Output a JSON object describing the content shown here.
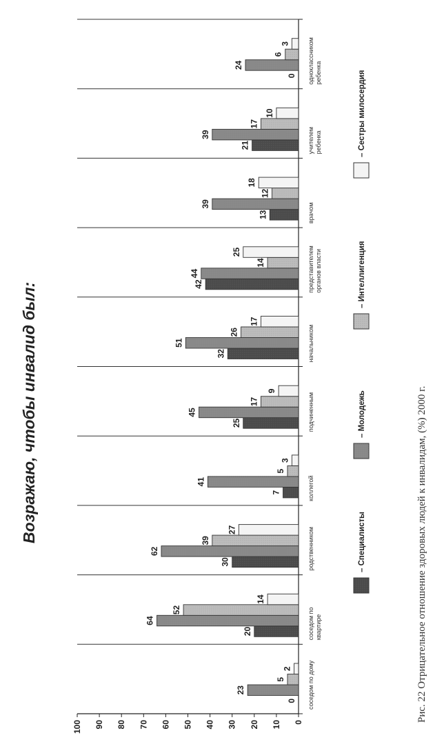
{
  "title": "Возражаю, чтобы инвалид был:",
  "caption": "Рис. 22 Отрицательное отношение здоровых людей к инвалидам, (%) 2000 г.",
  "chart_data": {
    "type": "bar",
    "orientation": "horizontal (rotated page)",
    "categories": [
      [
        "соседом по дому"
      ],
      [
        "соседом по",
        "квартире"
      ],
      [
        "родственником"
      ],
      [
        "коллегой"
      ],
      [
        "подчиненным"
      ],
      [
        "начальником"
      ],
      [
        "представителем",
        "органов власти"
      ],
      [
        "врачом"
      ],
      [
        "учителем",
        "ребенка"
      ],
      [
        "одноклассником",
        "ребенка"
      ]
    ],
    "series": [
      {
        "name": "– Специалисты",
        "values": [
          0,
          20,
          30,
          7,
          25,
          32,
          42,
          13,
          21,
          0
        ],
        "color": "#4a4a4a"
      },
      {
        "name": "– Молодежь",
        "values": [
          23,
          64,
          62,
          41,
          45,
          51,
          44,
          39,
          39,
          24
        ],
        "color": "#8a8a8a"
      },
      {
        "name": "– Интеллигенция",
        "values": [
          5,
          52,
          39,
          5,
          17,
          26,
          14,
          12,
          17,
          6
        ],
        "color": "#bdbdbd"
      },
      {
        "name": "– Сестры милосердия",
        "values": [
          2,
          14,
          27,
          3,
          9,
          17,
          25,
          18,
          10,
          3
        ],
        "color": "#f4f4f4"
      }
    ],
    "yticks": [
      "0",
      "10",
      "20",
      "30",
      "40",
      "50",
      "60",
      "70",
      "80",
      "90",
      "100"
    ],
    "ylim": [
      0,
      100
    ],
    "legend_position": "bottom"
  }
}
